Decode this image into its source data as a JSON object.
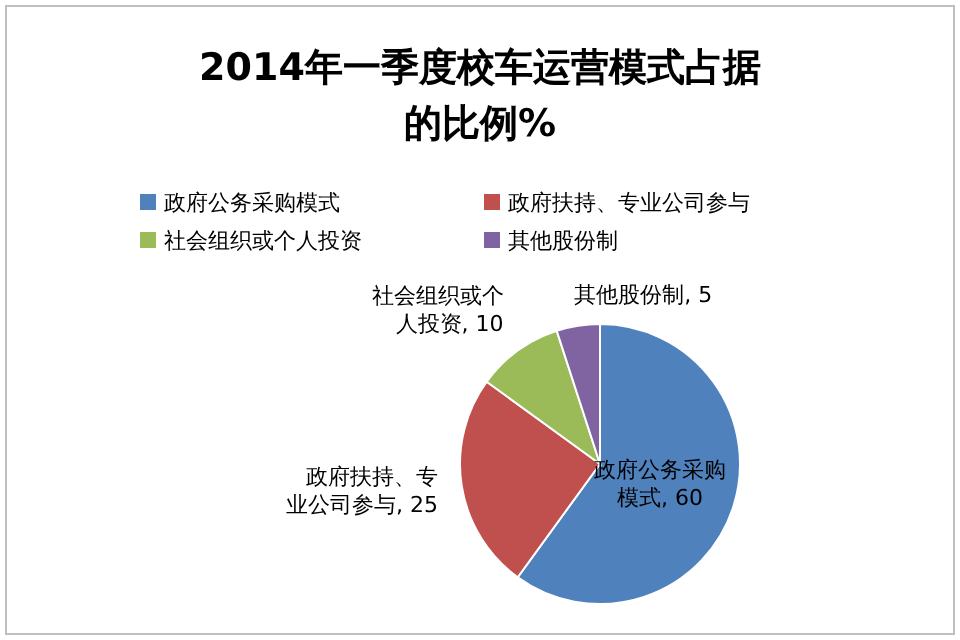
{
  "chart_data": {
    "type": "pie",
    "title": "2014年一季度校车运营模式占据的比例%",
    "categories": [
      "政府公务采购模式",
      "政府扶持、专业公司参与",
      "社会组织或个人投资",
      "其他股份制"
    ],
    "values": [
      60,
      25,
      10,
      5
    ],
    "colors": [
      "#4f81bd",
      "#c0504d",
      "#9bbb59",
      "#8064a2"
    ],
    "value_labels": [
      "政府公务采购模式, 60",
      "政府扶持、专业公司参与, 25",
      "社会组织或个人投资, 10",
      "其他股份制, 5"
    ],
    "legend": "top"
  }
}
